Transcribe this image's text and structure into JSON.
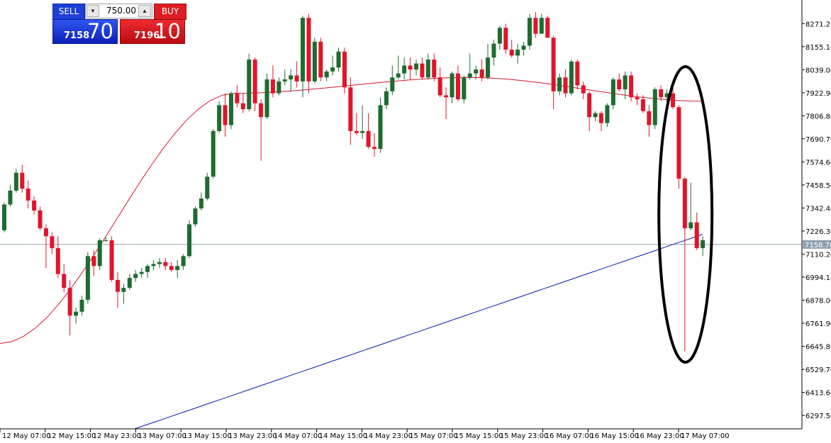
{
  "trade_panel": {
    "sell_label": "SELL",
    "buy_label": "BUY",
    "volume": "750.00",
    "sell_price_small": "7158",
    "sell_price_big": "70",
    "buy_price_small": "7196",
    "buy_price_big": "10"
  },
  "colors": {
    "bull": "#1e6b2f",
    "bear": "#e0142a",
    "ma_fast": "#d4172f",
    "ma_slow": "#0a18a8",
    "current_line": "#8fa0ad",
    "annotation": "#000000",
    "current_label_bg": "#8fa0ad"
  },
  "chart_data": {
    "type": "candlestick",
    "title": "",
    "timeframe_per_candle": "1 hour",
    "y_axis": {
      "position": "right",
      "ylim": [
        6230.0,
        8390.0
      ],
      "ticks": [
        "8271.20",
        "8155.10",
        "8039.00",
        "7922.90",
        "7806.80",
        "7690.70",
        "7574.60",
        "7458.50",
        "7342.40",
        "7226.30",
        "7110.20",
        "6994.10",
        "6878.00",
        "6761.90",
        "6645.80",
        "6529.70",
        "6413.60",
        "6297.50"
      ],
      "current_price": "7158.70"
    },
    "x_axis": {
      "labels": [
        "12 May 07:00",
        "12 May 15:00",
        "12 May 23:00",
        "13 May 07:00",
        "13 May 15:00",
        "13 May 23:00",
        "14 May 07:00",
        "14 May 15:00",
        "14 May 23:00",
        "15 May 07:00",
        "15 May 15:00",
        "15 May 23:00",
        "16 May 07:00",
        "16 May 15:00",
        "16 May 23:00",
        "17 May 07:00"
      ]
    },
    "series": [
      {
        "kind": "candles",
        "values": [
          [
            7230,
            7370,
            7220,
            7360
          ],
          [
            7360,
            7460,
            7350,
            7430
          ],
          [
            7430,
            7540,
            7420,
            7520
          ],
          [
            7520,
            7560,
            7420,
            7440
          ],
          [
            7440,
            7480,
            7340,
            7380
          ],
          [
            7380,
            7400,
            7310,
            7330
          ],
          [
            7330,
            7350,
            7230,
            7240
          ],
          [
            7240,
            7260,
            7040,
            7200
          ],
          [
            7200,
            7220,
            7110,
            7140
          ],
          [
            7140,
            7200,
            6990,
            7010
          ],
          [
            7010,
            7060,
            6920,
            6940
          ],
          [
            6940,
            6980,
            6700,
            6800
          ],
          [
            6800,
            6840,
            6760,
            6820
          ],
          [
            6820,
            6900,
            6800,
            6880
          ],
          [
            6880,
            7120,
            6860,
            7100
          ],
          [
            7100,
            7130,
            7000,
            7050
          ],
          [
            7050,
            7190,
            7030,
            7180
          ],
          [
            7180,
            7200,
            7170,
            7180
          ],
          [
            7180,
            7200,
            6970,
            6980
          ],
          [
            6980,
            7020,
            6840,
            6920
          ],
          [
            6920,
            6960,
            6860,
            6940
          ],
          [
            6940,
            7010,
            6930,
            6990
          ],
          [
            6990,
            7030,
            6970,
            7010
          ],
          [
            7010,
            7040,
            6990,
            7020
          ],
          [
            7020,
            7060,
            6990,
            7050
          ],
          [
            7050,
            7080,
            7030,
            7060
          ],
          [
            7060,
            7090,
            7040,
            7070
          ],
          [
            7070,
            7090,
            7030,
            7050
          ],
          [
            7050,
            7070,
            7020,
            7030
          ],
          [
            7030,
            7080,
            6990,
            7050
          ],
          [
            7050,
            7110,
            7030,
            7100
          ],
          [
            7100,
            7280,
            7090,
            7260
          ],
          [
            7260,
            7350,
            7250,
            7340
          ],
          [
            7340,
            7420,
            7330,
            7390
          ],
          [
            7390,
            7520,
            7380,
            7500
          ],
          [
            7500,
            7740,
            7490,
            7730
          ],
          [
            7730,
            7880,
            7720,
            7860
          ],
          [
            7860,
            7920,
            7700,
            7760
          ],
          [
            7760,
            7930,
            7740,
            7920
          ],
          [
            7920,
            7960,
            7850,
            7870
          ],
          [
            7870,
            7920,
            7820,
            7840
          ],
          [
            7840,
            8120,
            7830,
            8090
          ],
          [
            8090,
            8100,
            7830,
            7870
          ],
          [
            7870,
            7890,
            7580,
            7800
          ],
          [
            7800,
            8020,
            7790,
            7990
          ],
          [
            7990,
            8060,
            7900,
            7920
          ],
          [
            7920,
            8000,
            7910,
            7980
          ],
          [
            7980,
            8040,
            7960,
            7990
          ],
          [
            7990,
            8040,
            7930,
            8010
          ],
          [
            8010,
            8080,
            7950,
            7980
          ],
          [
            7980,
            8310,
            7900,
            8300
          ],
          [
            8300,
            8320,
            7920,
            7980
          ],
          [
            7980,
            8200,
            7970,
            8180
          ],
          [
            8180,
            8200,
            7980,
            8000
          ],
          [
            8000,
            8040,
            7980,
            8030
          ],
          [
            8030,
            8110,
            8010,
            8050
          ],
          [
            8050,
            8150,
            8030,
            8130
          ],
          [
            8130,
            8150,
            7920,
            7950
          ],
          [
            7950,
            8000,
            7660,
            7730
          ],
          [
            7730,
            7820,
            7710,
            7720
          ],
          [
            7720,
            7860,
            7690,
            7730
          ],
          [
            7730,
            7820,
            7640,
            7650
          ],
          [
            7650,
            7720,
            7600,
            7640
          ],
          [
            7640,
            7900,
            7620,
            7860
          ],
          [
            7860,
            7950,
            7840,
            7930
          ],
          [
            7930,
            8060,
            7910,
            8000
          ],
          [
            8000,
            8110,
            7990,
            8020
          ],
          [
            8020,
            8100,
            7990,
            8060
          ],
          [
            8060,
            8100,
            7990,
            8040
          ],
          [
            8040,
            8090,
            8010,
            8070
          ],
          [
            8070,
            8100,
            7990,
            8000
          ],
          [
            8000,
            8120,
            7990,
            8090
          ],
          [
            8090,
            8120,
            7980,
            8000
          ],
          [
            8000,
            8050,
            7900,
            7910
          ],
          [
            7910,
            7950,
            7790,
            7900
          ],
          [
            7900,
            8030,
            7870,
            8020
          ],
          [
            8020,
            8060,
            7880,
            7890
          ],
          [
            7890,
            8010,
            7870,
            8000
          ],
          [
            8000,
            8120,
            7990,
            8020
          ],
          [
            8020,
            8060,
            7990,
            8040
          ],
          [
            8040,
            8090,
            7980,
            8000
          ],
          [
            8000,
            8170,
            7990,
            8100
          ],
          [
            8100,
            8190,
            8060,
            8170
          ],
          [
            8170,
            8260,
            8140,
            8250
          ],
          [
            8250,
            8270,
            8120,
            8140
          ],
          [
            8140,
            8190,
            8100,
            8110
          ],
          [
            8110,
            8170,
            8070,
            8140
          ],
          [
            8140,
            8180,
            8110,
            8160
          ],
          [
            8160,
            8320,
            8140,
            8300
          ],
          [
            8300,
            8330,
            8200,
            8220
          ],
          [
            8220,
            8320,
            8220,
            8300
          ],
          [
            8300,
            8310,
            8200,
            8200
          ],
          [
            8200,
            8210,
            7840,
            7930
          ],
          [
            7930,
            8020,
            7910,
            8000
          ],
          [
            8000,
            8040,
            7900,
            7920
          ],
          [
            7920,
            8090,
            7910,
            8080
          ],
          [
            8080,
            8090,
            7940,
            7960
          ],
          [
            7960,
            7980,
            7890,
            7920
          ],
          [
            7920,
            7930,
            7730,
            7800
          ],
          [
            7800,
            7830,
            7780,
            7820
          ],
          [
            7820,
            7830,
            7730,
            7770
          ],
          [
            7770,
            7870,
            7750,
            7860
          ],
          [
            7860,
            8000,
            7840,
            7990
          ],
          [
            7990,
            8020,
            7930,
            7940
          ],
          [
            7940,
            8030,
            7890,
            8010
          ],
          [
            8010,
            8030,
            7880,
            7900
          ],
          [
            7900,
            7920,
            7860,
            7890
          ],
          [
            7890,
            7910,
            7820,
            7830
          ],
          [
            7830,
            7860,
            7700,
            7760
          ],
          [
            7760,
            7950,
            7740,
            7940
          ],
          [
            7940,
            7960,
            7880,
            7900
          ],
          [
            7900,
            7940,
            7870,
            7920
          ],
          [
            7920,
            7950,
            7840,
            7850
          ],
          [
            7850,
            7860,
            7440,
            7490
          ],
          [
            7490,
            7500,
            6620,
            7240
          ],
          [
            7240,
            7470,
            7230,
            7270
          ],
          [
            7270,
            7320,
            7130,
            7140
          ],
          [
            7140,
            7200,
            7100,
            7180
          ]
        ]
      },
      {
        "kind": "line",
        "name": "",
        "values": [
          6660,
          7920,
          8000,
          7880
        ],
        "role": "ma_fast"
      },
      {
        "kind": "line",
        "name": "",
        "values": [
          6230,
          7210
        ],
        "role": "ma_slow"
      }
    ],
    "annotations": [
      {
        "type": "ellipse",
        "around": "last candles",
        "color": "#000000"
      }
    ]
  }
}
